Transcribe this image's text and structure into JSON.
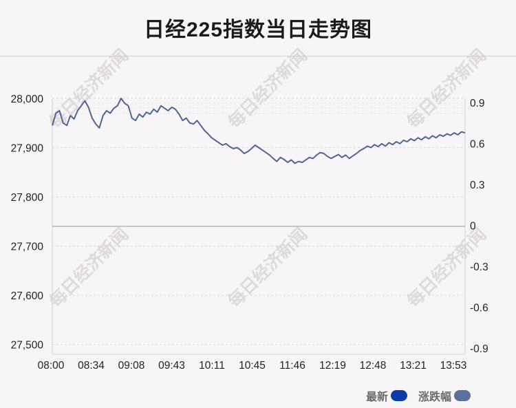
{
  "title": "日经225指数当日走势图",
  "watermark": "每日经济新闻",
  "legend": [
    {
      "label": "最新",
      "color": "#0b3da8"
    },
    {
      "label": "涨跌幅",
      "color": "#5a6f9c"
    }
  ],
  "chart_data": {
    "type": "line",
    "title": "日经225指数当日走势图",
    "x_ticks": [
      "08:00",
      "08:34",
      "09:08",
      "09:43",
      "10:11",
      "10:45",
      "11:46",
      "12:19",
      "12:48",
      "13:21",
      "13:53"
    ],
    "y_left_ticks": [
      28000,
      27900,
      27800,
      27700,
      27600,
      27500
    ],
    "y_left_labels": [
      "28,000",
      "27,900",
      "27,800",
      "27,700",
      "27,600",
      "27,500"
    ],
    "y_right_ticks": [
      0.9,
      0.6,
      0.3,
      0,
      -0.3,
      -0.6,
      -0.9
    ],
    "y_right_labels": [
      "0.9",
      "0.6",
      "0.3",
      "0",
      "-0.3",
      "-0.6",
      "-0.9"
    ],
    "ylim_left": [
      27480,
      28000
    ],
    "baseline": 27740,
    "grid": true,
    "line_color": "#4f6494",
    "series": [
      {
        "name": "最新",
        "values": [
          27945,
          27970,
          27975,
          27950,
          27945,
          27965,
          27958,
          27975,
          27985,
          27995,
          27982,
          27960,
          27948,
          27940,
          27965,
          27975,
          27970,
          27980,
          27985,
          28000,
          27990,
          27985,
          27960,
          27955,
          27968,
          27962,
          27972,
          27968,
          27978,
          27972,
          27985,
          27980,
          27975,
          27982,
          27978,
          27968,
          27955,
          27960,
          27950,
          27948,
          27955,
          27945,
          27935,
          27928,
          27920,
          27915,
          27910,
          27905,
          27908,
          27902,
          27898,
          27900,
          27895,
          27888,
          27892,
          27898,
          27905,
          27900,
          27895,
          27890,
          27885,
          27878,
          27872,
          27880,
          27876,
          27870,
          27875,
          27868,
          27872,
          27870,
          27875,
          27880,
          27878,
          27885,
          27890,
          27888,
          27882,
          27878,
          27882,
          27886,
          27880,
          27885,
          27878,
          27883,
          27888,
          27894,
          27898,
          27903,
          27900,
          27906,
          27902,
          27908,
          27903,
          27910,
          27906,
          27912,
          27908,
          27915,
          27912,
          27918,
          27914,
          27920,
          27916,
          27922,
          27918,
          27924,
          27920,
          27926,
          27923,
          27928,
          27925,
          27930,
          27926,
          27932,
          27930
        ]
      }
    ]
  }
}
